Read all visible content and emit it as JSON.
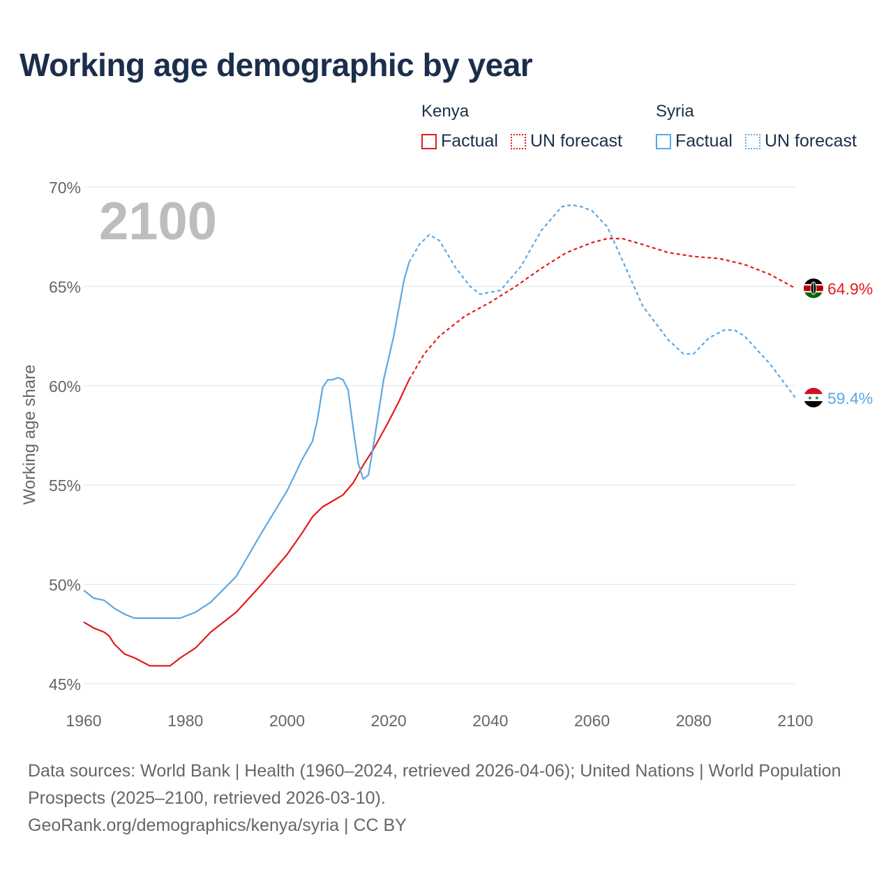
{
  "title": "Working age demographic by year",
  "legend": {
    "kenya": {
      "country": "Kenya",
      "factual": "Factual",
      "forecast": "UN forecast"
    },
    "syria": {
      "country": "Syria",
      "factual": "Factual",
      "forecast": "UN forecast"
    }
  },
  "colors": {
    "kenya": "#e41a1c",
    "syria": "#5ca8e3",
    "year": "#bdbdbd",
    "axis": "#666666",
    "title": "#1b2e4b"
  },
  "chart_data": {
    "type": "line",
    "title": "Working age demographic by year",
    "year_label": "2100",
    "ylabel": "Working age share",
    "xlim": [
      1960,
      2100
    ],
    "ylim": [
      45,
      70
    ],
    "x_ticks": [
      "1960",
      "1980",
      "2000",
      "2020",
      "2040",
      "2060",
      "2080",
      "2100"
    ],
    "y_ticks": [
      "45%",
      "50%",
      "55%",
      "60%",
      "65%",
      "70%"
    ],
    "grid": true,
    "factual_range": [
      1960,
      2024
    ],
    "forecast_range": [
      2024,
      2100
    ],
    "series": [
      {
        "name": "Kenya",
        "end_label": "64.9%",
        "x": [
          1960,
          1962,
          1964,
          1965,
          1966,
          1968,
          1970,
          1973,
          1977,
          1978,
          1979,
          1982,
          1985,
          1990,
          1995,
          2000,
          2003,
          2005,
          2007,
          2009,
          2011,
          2013,
          2015,
          2017,
          2020,
          2022,
          2024,
          2027,
          2030,
          2035,
          2040,
          2045,
          2050,
          2055,
          2060,
          2063,
          2066,
          2070,
          2075,
          2080,
          2085,
          2090,
          2095,
          2100
        ],
        "y": [
          48.1,
          47.8,
          47.6,
          47.4,
          47.0,
          46.5,
          46.3,
          45.9,
          45.9,
          46.1,
          46.3,
          46.8,
          47.6,
          48.6,
          50.0,
          51.5,
          52.6,
          53.4,
          53.9,
          54.2,
          54.5,
          55.1,
          56.0,
          56.8,
          58.2,
          59.2,
          60.3,
          61.6,
          62.5,
          63.5,
          64.2,
          65.0,
          65.9,
          66.7,
          67.2,
          67.4,
          67.4,
          67.1,
          66.7,
          66.5,
          66.4,
          66.1,
          65.6,
          64.9
        ]
      },
      {
        "name": "Syria",
        "end_label": "59.4%",
        "x": [
          1960,
          1962,
          1964,
          1966,
          1968,
          1970,
          1975,
          1979,
          1982,
          1985,
          1990,
          1995,
          2000,
          2003,
          2005,
          2006,
          2007,
          2008,
          2009,
          2010,
          2011,
          2012,
          2013,
          2014,
          2015,
          2016,
          2017,
          2019,
          2021,
          2023,
          2024,
          2026,
          2028,
          2030,
          2033,
          2036,
          2038,
          2042,
          2046,
          2050,
          2054,
          2056,
          2058,
          2060,
          2063,
          2066,
          2070,
          2075,
          2078,
          2080,
          2083,
          2086,
          2088,
          2090,
          2095,
          2100
        ],
        "y": [
          49.7,
          49.3,
          49.2,
          48.8,
          48.5,
          48.3,
          48.3,
          48.3,
          48.6,
          49.1,
          50.4,
          52.6,
          54.7,
          56.3,
          57.2,
          58.3,
          59.9,
          60.3,
          60.3,
          60.4,
          60.3,
          59.8,
          57.9,
          56.1,
          55.3,
          55.5,
          57.0,
          60.3,
          62.5,
          65.3,
          66.2,
          67.1,
          67.6,
          67.3,
          66.0,
          65.0,
          64.6,
          64.8,
          66.0,
          67.8,
          69.0,
          69.1,
          69.0,
          68.8,
          68.0,
          66.3,
          64.0,
          62.3,
          61.6,
          61.6,
          62.4,
          62.8,
          62.8,
          62.5,
          61.1,
          59.4
        ]
      }
    ]
  },
  "footer": {
    "sources": "Data sources: World Bank | Health (1960–2024, retrieved 2026-04-06); United Nations | World Population Prospects (2025–2100, retrieved 2026-03-10).",
    "credit": "GeoRank.org/demographics/kenya/syria | CC BY"
  }
}
